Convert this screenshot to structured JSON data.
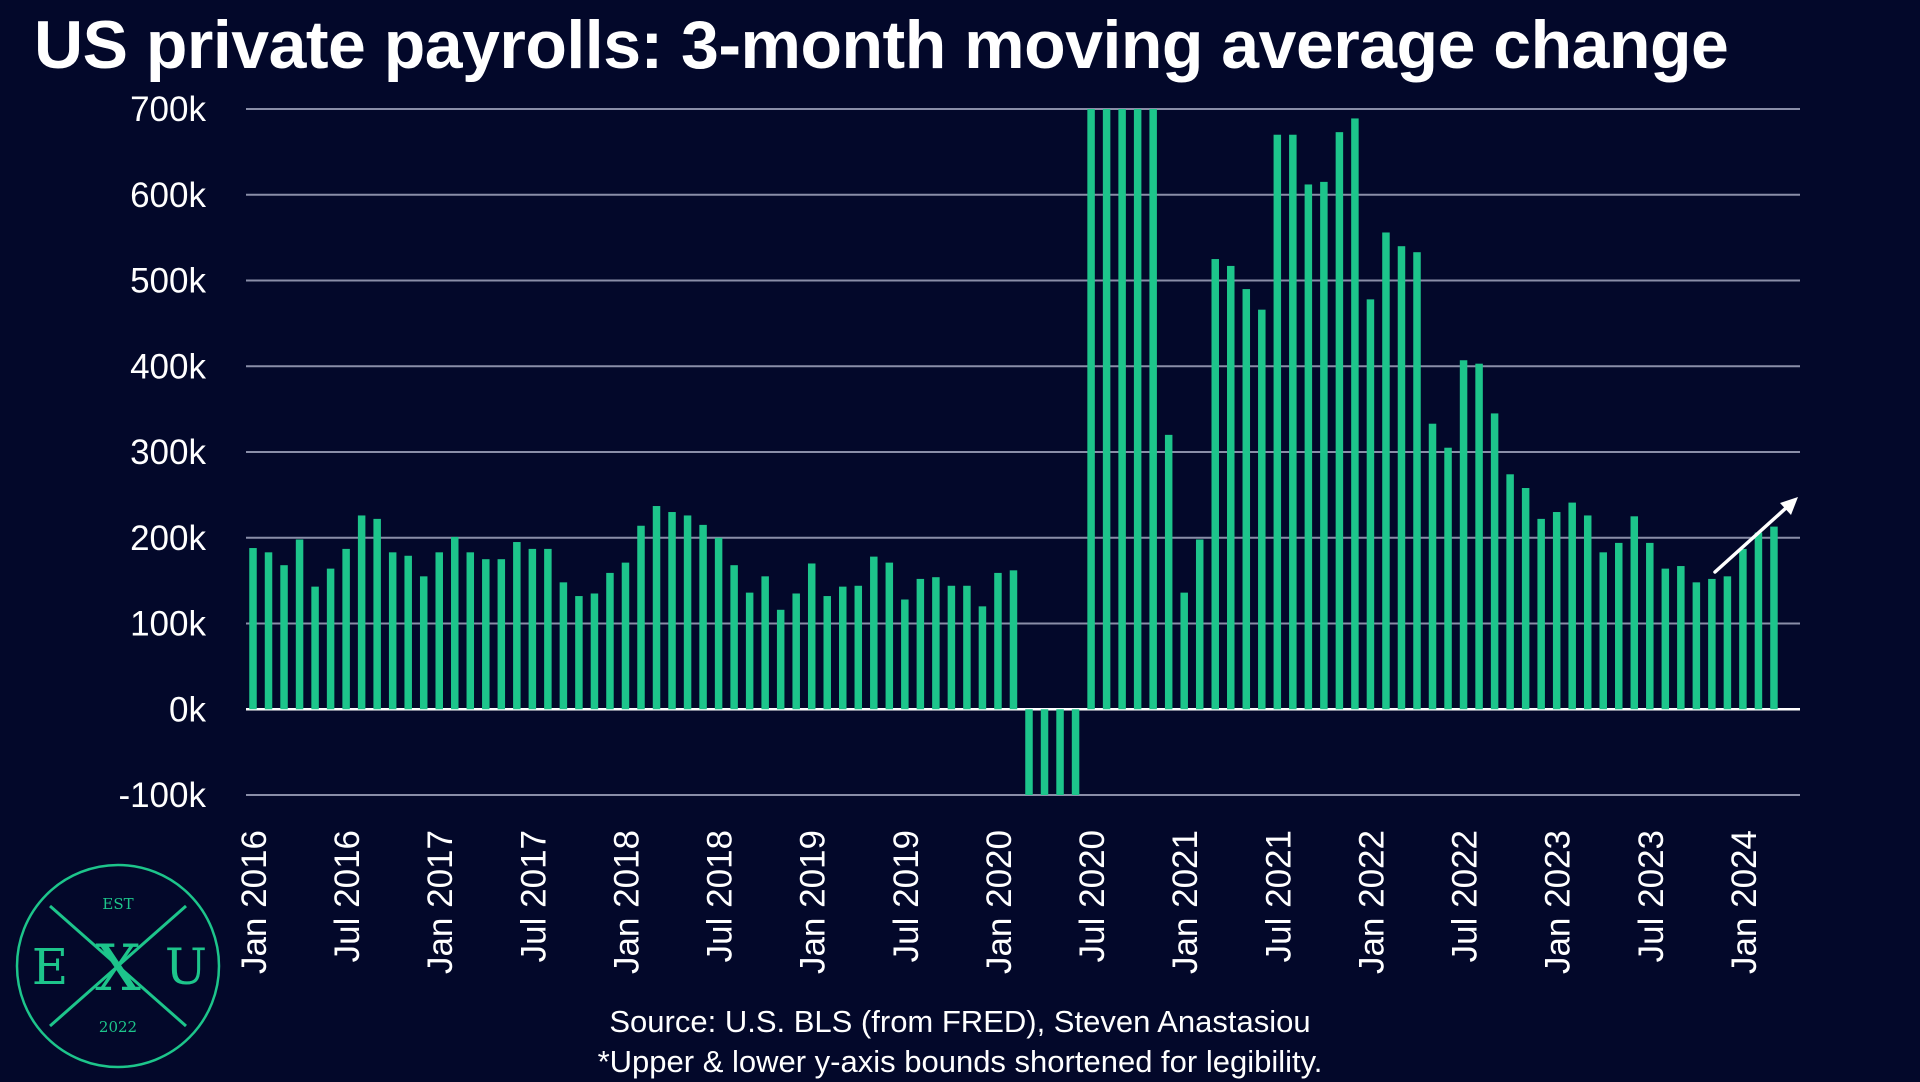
{
  "header": {
    "title": "US private payrolls: 3-month moving average change"
  },
  "footer": {
    "source": "Source: U.S. BLS (from FRED), Steven Anastasiou",
    "note": "*Upper & lower y-axis bounds shortened for legibility."
  },
  "logo": {
    "top": "EST",
    "left": "E",
    "right": "U",
    "bottom": "2022",
    "center": "X"
  },
  "colors": {
    "background": "#03082a",
    "bar": "#1dc58b",
    "grid": "#8a8ea8",
    "text": "#ffffff",
    "logo": "#1dc58b"
  },
  "chart_data": {
    "type": "bar",
    "title": "US private payrolls: 3-month moving average change",
    "xlabel": "",
    "ylabel": "",
    "ylim": [
      -100000,
      700000
    ],
    "yticks": [
      {
        "value": -100000,
        "label": "-100k"
      },
      {
        "value": 0,
        "label": "0k"
      },
      {
        "value": 100000,
        "label": "100k"
      },
      {
        "value": 200000,
        "label": "200k"
      },
      {
        "value": 300000,
        "label": "300k"
      },
      {
        "value": 400000,
        "label": "400k"
      },
      {
        "value": 500000,
        "label": "500k"
      },
      {
        "value": 600000,
        "label": "600k"
      },
      {
        "value": 700000,
        "label": "700k"
      }
    ],
    "xtick_labels": [
      "Jan 2016",
      "Jul 2016",
      "Jan 2017",
      "Jul 2017",
      "Jan 2018",
      "Jul 2018",
      "Jan 2019",
      "Jul 2019",
      "Jan 2020",
      "Jul 2020",
      "Jan 2021",
      "Jul 2021",
      "Jan 2022",
      "Jul 2022",
      "Jan 2023",
      "Jul 2023",
      "Jan 2024"
    ],
    "grid": true,
    "legend": "none",
    "annotation": "upward trend arrow over the most recent bars",
    "categories": [
      "2016-01",
      "2016-02",
      "2016-03",
      "2016-04",
      "2016-05",
      "2016-06",
      "2016-07",
      "2016-08",
      "2016-09",
      "2016-10",
      "2016-11",
      "2016-12",
      "2017-01",
      "2017-02",
      "2017-03",
      "2017-04",
      "2017-05",
      "2017-06",
      "2017-07",
      "2017-08",
      "2017-09",
      "2017-10",
      "2017-11",
      "2017-12",
      "2018-01",
      "2018-02",
      "2018-03",
      "2018-04",
      "2018-05",
      "2018-06",
      "2018-07",
      "2018-08",
      "2018-09",
      "2018-10",
      "2018-11",
      "2018-12",
      "2019-01",
      "2019-02",
      "2019-03",
      "2019-04",
      "2019-05",
      "2019-06",
      "2019-07",
      "2019-08",
      "2019-09",
      "2019-10",
      "2019-11",
      "2019-12",
      "2020-01",
      "2020-02",
      "2020-03",
      "2020-04",
      "2020-05",
      "2020-06",
      "2020-07",
      "2020-08",
      "2020-09",
      "2020-10",
      "2020-11",
      "2020-12",
      "2021-01",
      "2021-02",
      "2021-03",
      "2021-04",
      "2021-05",
      "2021-06",
      "2021-07",
      "2021-08",
      "2021-09",
      "2021-10",
      "2021-11",
      "2021-12",
      "2022-01",
      "2022-02",
      "2022-03",
      "2022-04",
      "2022-05",
      "2022-06",
      "2022-07",
      "2022-08",
      "2022-09",
      "2022-10",
      "2022-11",
      "2022-12",
      "2023-01",
      "2023-02",
      "2023-03",
      "2023-04",
      "2023-05",
      "2023-06",
      "2023-07",
      "2023-08",
      "2023-09",
      "2023-10",
      "2023-11",
      "2023-12",
      "2024-01",
      "2024-02",
      "2024-03"
    ],
    "values": [
      188000,
      183000,
      168000,
      198000,
      143000,
      164000,
      187000,
      226000,
      222000,
      183000,
      179000,
      155000,
      183000,
      201000,
      183000,
      175000,
      175000,
      195000,
      187000,
      187000,
      148000,
      132000,
      135000,
      159000,
      171000,
      214000,
      237000,
      230000,
      226000,
      215000,
      200000,
      168000,
      136000,
      155000,
      116000,
      135000,
      170000,
      132000,
      143000,
      144000,
      178000,
      171000,
      128000,
      152000,
      154000,
      144000,
      144000,
      120000,
      159000,
      162000,
      -100000,
      -100000,
      -100000,
      -100000,
      700000,
      700000,
      700000,
      700000,
      700000,
      320000,
      136000,
      198000,
      525000,
      517000,
      490000,
      466000,
      670000,
      670000,
      612000,
      615000,
      673000,
      689000,
      478000,
      556000,
      540000,
      533000,
      333000,
      305000,
      407000,
      403000,
      345000,
      274000,
      258000,
      222000,
      230000,
      241000,
      226000,
      183000,
      194000,
      225000,
      194000,
      164000,
      167000,
      148000,
      152000,
      155000,
      187000,
      206000,
      213000
    ]
  }
}
